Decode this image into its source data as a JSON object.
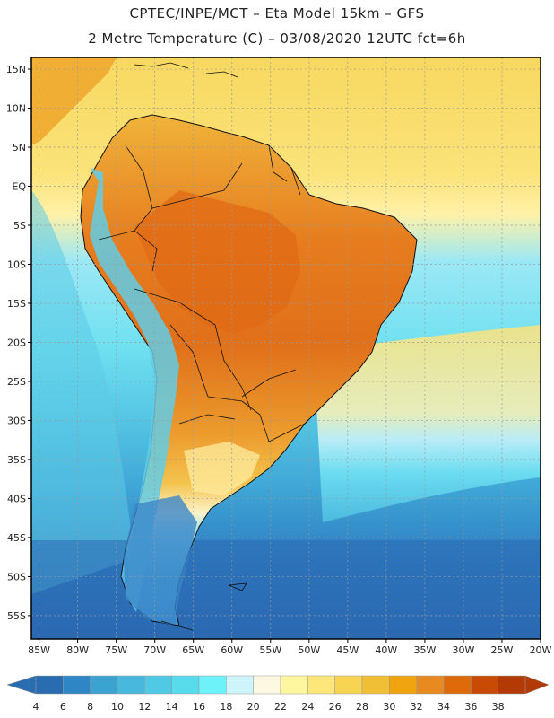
{
  "header": {
    "line1": "CPTEC/INPE/MCT –  Eta Model 15km – GFS",
    "line2": "2 Metre Temperature (C) – 03/08/2020 12UTC fct=6h"
  },
  "map": {
    "lat_labels": [
      "15N",
      "10N",
      "5N",
      "EQ",
      "5S",
      "10S",
      "15S",
      "20S",
      "25S",
      "30S",
      "35S",
      "40S",
      "45S",
      "50S",
      "55S"
    ],
    "lon_labels": [
      "85W",
      "80W",
      "75W",
      "70W",
      "65W",
      "60W",
      "55W",
      "50W",
      "45W",
      "40W",
      "35W",
      "30W",
      "25W",
      "20W"
    ],
    "lat_range": [
      16.5,
      -58
    ],
    "lon_range": [
      -86,
      -20
    ]
  },
  "colorbar": {
    "levels": [
      "4",
      "6",
      "8",
      "10",
      "12",
      "14",
      "16",
      "18",
      "20",
      "22",
      "24",
      "26",
      "28",
      "30",
      "32",
      "34",
      "36",
      "38"
    ],
    "colors": [
      "#2a6cb0",
      "#2f86c4",
      "#3aa3cf",
      "#48b8dc",
      "#4fc9e4",
      "#58dcec",
      "#6ef2f9",
      "#cdf5fb",
      "#fdf8e2",
      "#fff6a0",
      "#fde67a",
      "#f8d453",
      "#f0bf35",
      "#f0a510",
      "#e98a20",
      "#df6a0a",
      "#c84a05",
      "#b33a05"
    ],
    "low_arrow_color": "#2a6cb0",
    "high_arrow_color": "#b33a05"
  },
  "palette": {
    "ocean_south": "#2f78bd",
    "ocean_cold": "#3a9fd2",
    "ocean_mid": "#55c8e6",
    "ocean_mild": "#8fe6f4",
    "ocean_warm": "#fbe67a",
    "ocean_tropical": "#f5cd4c",
    "land_hot": "#e0701a",
    "land_warm": "#ef9d2f",
    "land_mild": "#f2bf45",
    "andes": "#5ec9e6",
    "patagonia": "#3f9fd4",
    "border": "#111111",
    "grid": "#9a9a9a"
  }
}
